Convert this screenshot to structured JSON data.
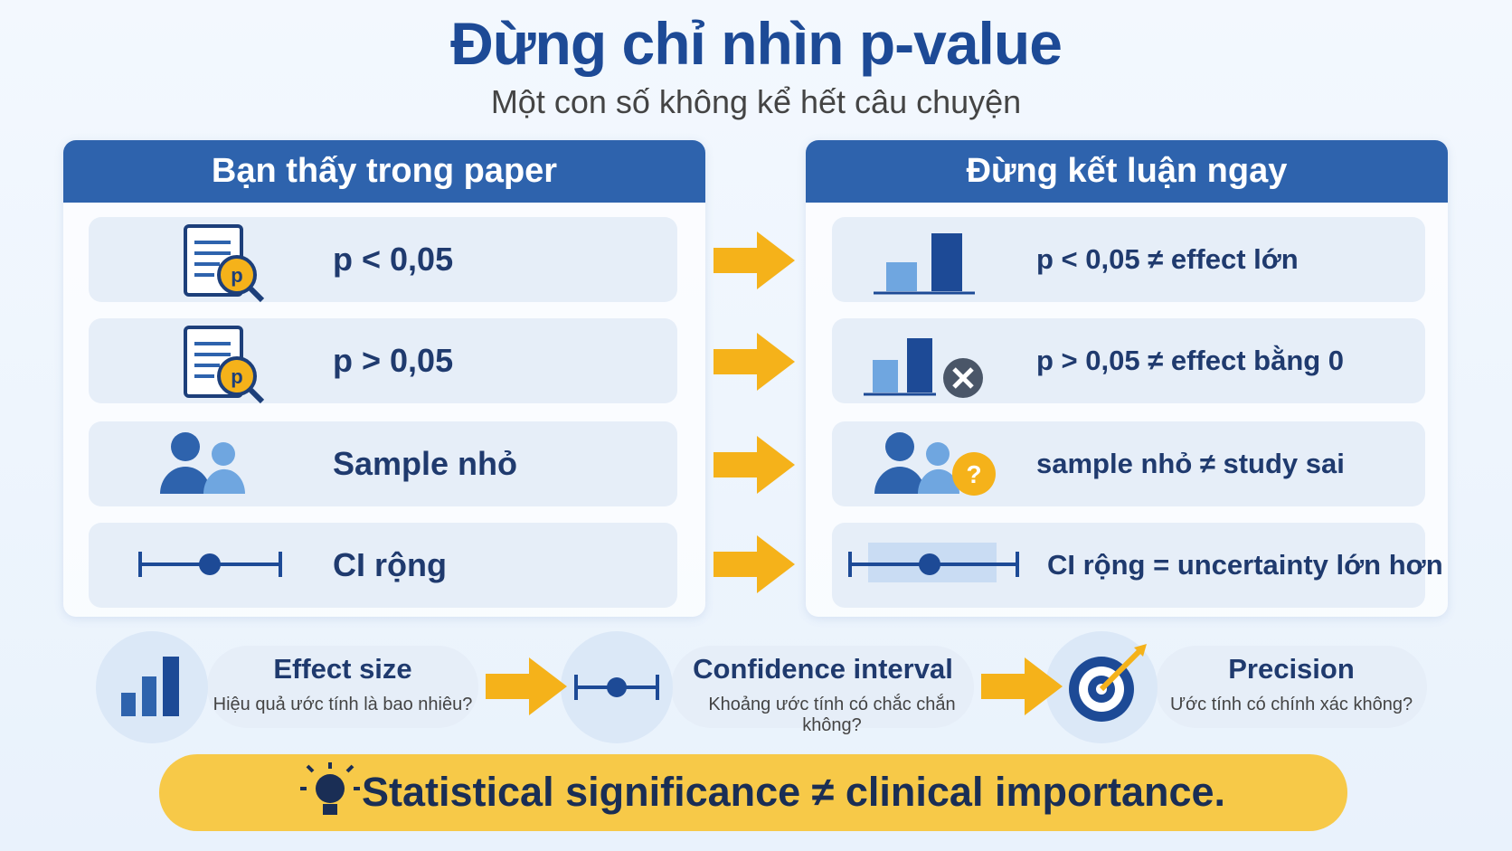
{
  "header": {
    "title": "Đừng chỉ nhìn p-value",
    "subtitle": "Một con số không kể hết câu chuyện"
  },
  "left_panel": {
    "title": "Bạn thấy trong paper",
    "rows": [
      "p < 0,05",
      "p > 0,05",
      "Sample nhỏ",
      "CI rộng"
    ]
  },
  "right_panel": {
    "title": "Đừng kết luận ngay",
    "rows": [
      "p < 0,05 ≠ effect lớn",
      "p > 0,05 ≠ effect bằng 0",
      "sample nhỏ ≠ study sai",
      "CI rộng = uncertainty lớn hơn"
    ]
  },
  "concepts": [
    {
      "title": "Effect size",
      "description": "Hiệu quả ước tính là bao nhiêu?"
    },
    {
      "title": "Confidence interval",
      "description": "Khoảng ước tính có chắc chắn không?"
    },
    {
      "title": "Precision",
      "description": "Ước tính có chính xác không?"
    }
  ],
  "footer": {
    "text": "Statistical significance ≠ clinical importance."
  }
}
